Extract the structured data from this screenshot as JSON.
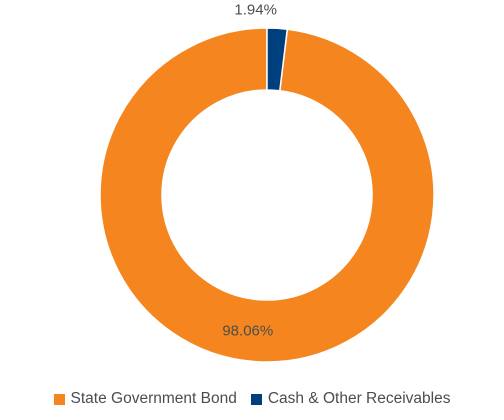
{
  "chart_data": {
    "type": "pie",
    "style": "donut",
    "categories": [
      "State Government Bond",
      "Cash & Other Receivables"
    ],
    "values": [
      98.06,
      1.94
    ],
    "data_labels": [
      "98.06%",
      "1.94%"
    ],
    "colors": [
      "#f5861f",
      "#003f7d"
    ],
    "legend_position": "bottom"
  },
  "legend": {
    "items": [
      {
        "label": "State Government Bond",
        "color": "#f5861f"
      },
      {
        "label": "Cash & Other Receivables",
        "color": "#003f7d"
      }
    ]
  }
}
